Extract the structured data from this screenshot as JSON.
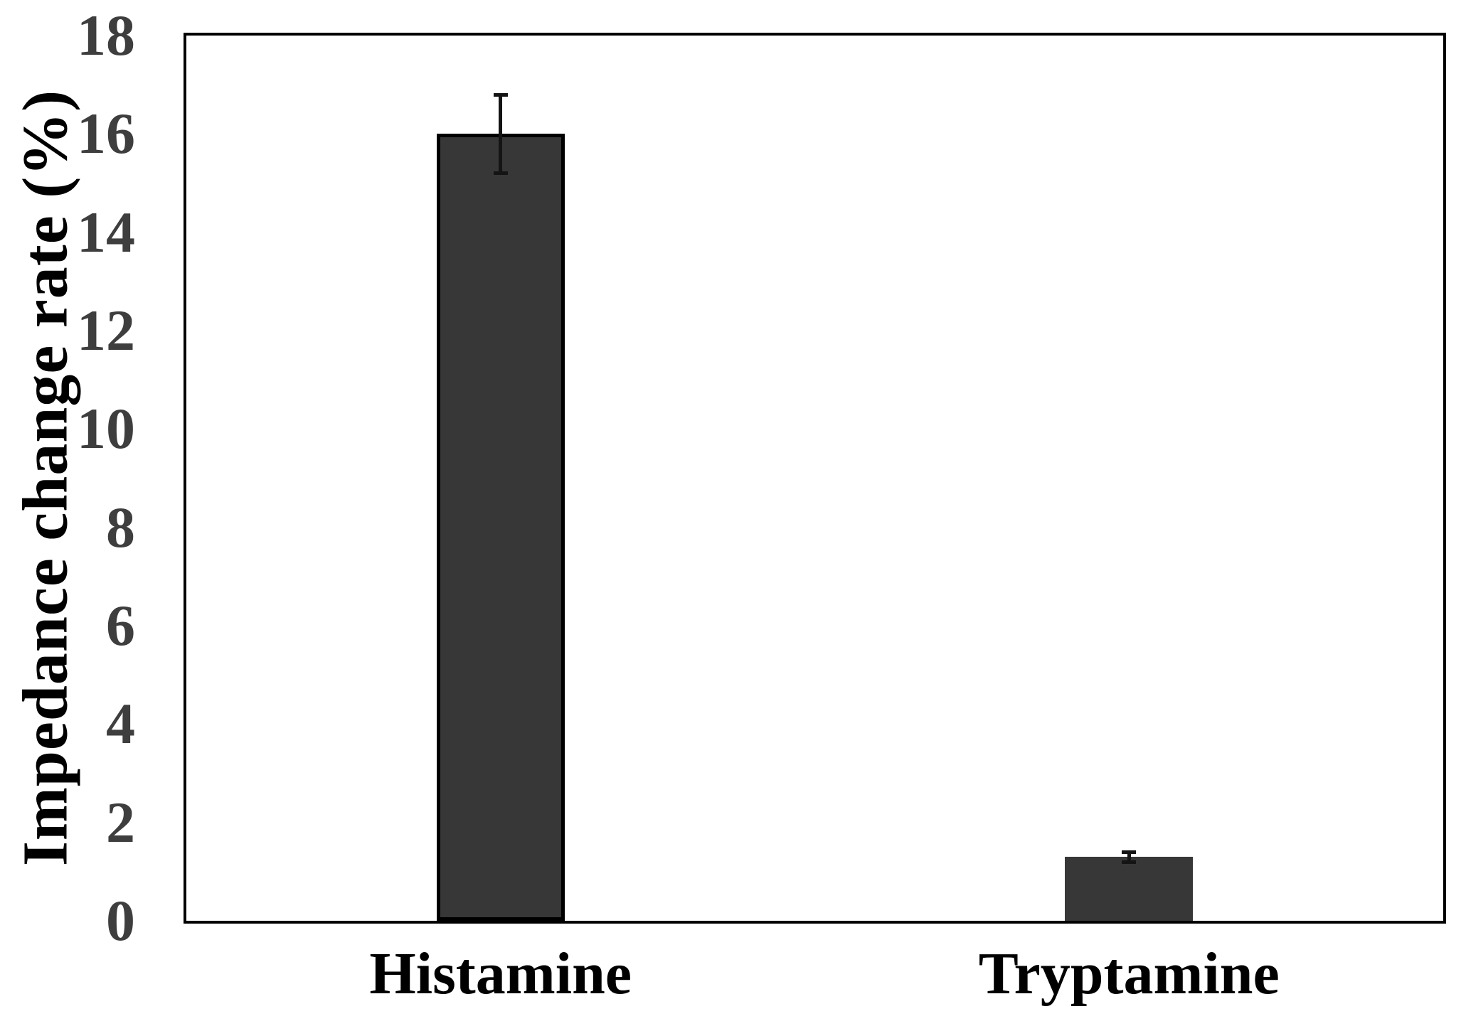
{
  "chart_data": {
    "type": "bar",
    "title": "",
    "xlabel": "",
    "ylabel": "Impedance change rate (%)",
    "categories": [
      "Histamine",
      "Tryptamine"
    ],
    "series": [
      {
        "name": "Impedance change rate",
        "values": [
          16.0,
          1.3
        ],
        "errors": [
          0.8,
          0.1
        ]
      }
    ],
    "bars": [
      {
        "label": "Histamine",
        "value": 16.0,
        "error": 0.8,
        "fill": "#373737",
        "border": "#000000"
      },
      {
        "label": "Tryptamine",
        "value": 1.3,
        "error": 0.1,
        "fill": "#373737",
        "border": "none"
      }
    ],
    "ylim": [
      0,
      18
    ],
    "yticks": [
      0,
      2,
      4,
      6,
      8,
      10,
      12,
      14,
      16,
      18
    ],
    "grid": false,
    "legend_position": "none",
    "tick_label_color": "#3e3e3e",
    "axis_color": "#000000",
    "error_bar_color": "#141414",
    "background_color": "#ffffff"
  }
}
